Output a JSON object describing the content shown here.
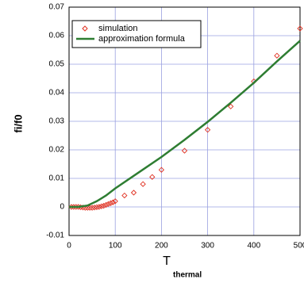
{
  "chart_data": {
    "type": "line",
    "xlabel": {
      "main": "T",
      "sub": "thermal"
    },
    "ylabel": "fi/f0",
    "xlim": [
      0,
      500
    ],
    "xticks": [
      0,
      100,
      200,
      300,
      400,
      500
    ],
    "ylim": [
      -0.01,
      0.07
    ],
    "yticks": [
      -0.01,
      0,
      0.01,
      0.02,
      0.03,
      0.04,
      0.05,
      0.06,
      0.07
    ],
    "grid": true,
    "legend": "upper-left",
    "series": [
      {
        "name": "simulation",
        "color": "#e03020",
        "marker": "diamond",
        "x": [
          5,
          10,
          15,
          20,
          25,
          30,
          35,
          40,
          45,
          50,
          55,
          60,
          65,
          70,
          75,
          80,
          85,
          90,
          95,
          100,
          120,
          140,
          160,
          180,
          200,
          250,
          300,
          350,
          400,
          450,
          500
        ],
        "values": [
          0,
          0,
          0,
          0,
          -0.0001,
          -0.0002,
          -0.0003,
          -0.0003,
          -0.0003,
          -0.0003,
          -0.0002,
          -0.0001,
          0,
          0.0002,
          0.0004,
          0.0007,
          0.001,
          0.0013,
          0.0016,
          0.002,
          0.004,
          0.005,
          0.008,
          0.0105,
          0.013,
          0.0197,
          0.027,
          0.0352,
          0.044,
          0.053,
          0.0625
        ]
      },
      {
        "name": "approximation formula",
        "color": "#2e7d32",
        "marker": "none",
        "x": [
          0,
          20,
          40,
          60,
          80,
          100,
          150,
          200,
          250,
          300,
          350,
          400,
          450,
          500
        ],
        "values": [
          0,
          0,
          0.0005,
          0.002,
          0.004,
          0.0065,
          0.012,
          0.0175,
          0.0235,
          0.0298,
          0.0365,
          0.0435,
          0.051,
          0.0582
        ]
      }
    ]
  }
}
